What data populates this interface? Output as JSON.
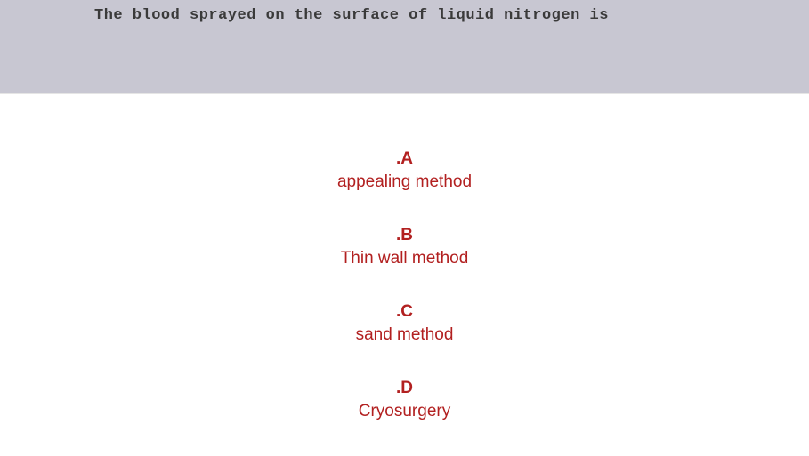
{
  "question": {
    "text": "The blood sprayed on the surface of liquid nitrogen is"
  },
  "answers": [
    {
      "letter": ".A",
      "text": "appealing method"
    },
    {
      "letter": ".B",
      "text": "Thin wall method"
    },
    {
      "letter": ".C",
      "text": "sand method"
    },
    {
      "letter": ".D",
      "text": "Cryosurgery"
    }
  ],
  "colors": {
    "header_bg": "#c8c7d2",
    "question_text": "#3a3a3a",
    "answer_color": "#b22020",
    "body_bg": "#ffffff"
  }
}
